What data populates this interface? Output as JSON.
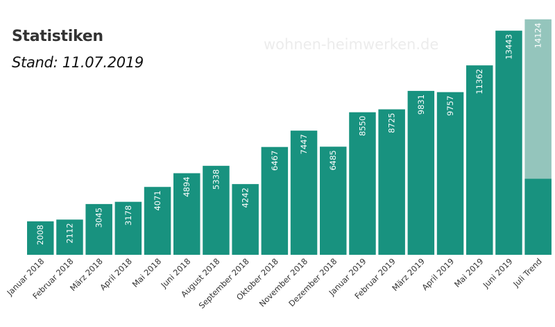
{
  "chart_data": {
    "type": "bar",
    "title": "Statistiken",
    "subtitle": "Stand: 11.07.2019",
    "watermark": "wohnen-heimwerken.de",
    "categories": [
      "Januar 2018",
      "Februar 2018",
      "März 2018",
      "April 2018",
      "Mai 2018",
      "Juni 2018",
      "August 2018",
      "September 2018",
      "Oktober 2018",
      "November 2018",
      "Dezember 2018",
      "Januar 2019",
      "Februar 2019",
      "März 2019",
      "April 2019",
      "Mai 2019",
      "Juni 2019",
      "Juli Trend"
    ],
    "values": [
      2008,
      2112,
      3045,
      3178,
      4071,
      4894,
      5338,
      4242,
      6467,
      7447,
      6485,
      8550,
      8725,
      9831,
      9757,
      11362,
      13443,
      14124
    ],
    "trend_actual": 4560,
    "ylim": [
      0,
      14700
    ],
    "colors": {
      "bar": "#18927f",
      "trend": "#94c5bc",
      "label": "#ffffff"
    }
  }
}
